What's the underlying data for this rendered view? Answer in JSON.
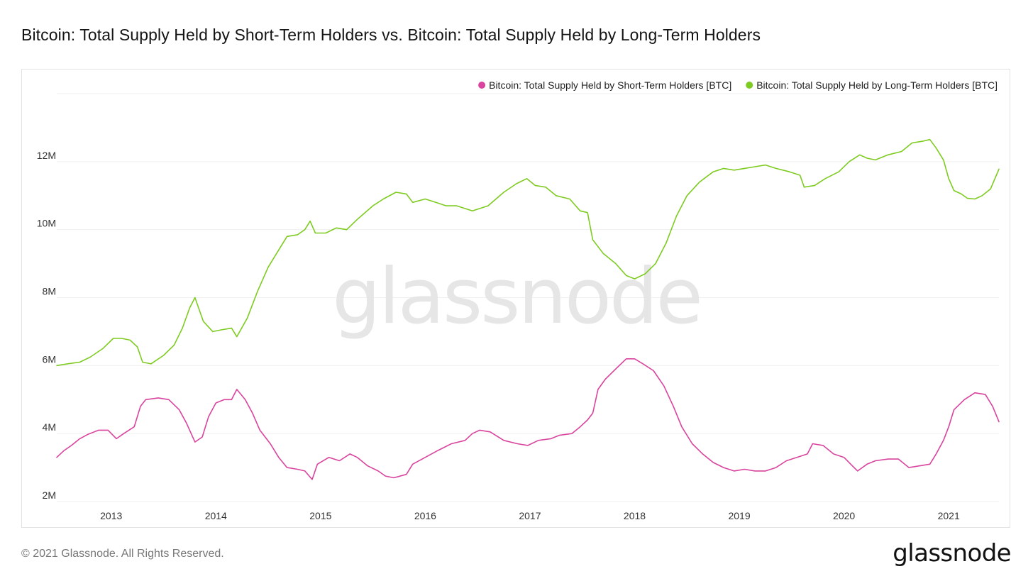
{
  "header": {
    "title": "Bitcoin: Total Supply Held by Short-Term Holders vs. Bitcoin: Total Supply Held by Long-Term Holders"
  },
  "footer": {
    "copyright": "© 2021 Glassnode. All Rights Reserved.",
    "brand": "glassnode"
  },
  "watermark": "glassnode",
  "colors": {
    "sth": "#d9449e",
    "lth": "#7ecb20",
    "grid": "#efefef",
    "watermark": "#e6e6e6"
  },
  "chart_data": {
    "type": "line",
    "title": "Bitcoin: Total Supply Held by Short-Term Holders vs. Bitcoin: Total Supply Held by Long-Term Holders",
    "xlabel": "",
    "ylabel": "",
    "x_range": [
      2012.48,
      2021.48
    ],
    "ylim": [
      2000000,
      14000000
    ],
    "y_ticks": [
      {
        "value": 2000000,
        "label": "2M"
      },
      {
        "value": 4000000,
        "label": "4M"
      },
      {
        "value": 6000000,
        "label": "6M"
      },
      {
        "value": 8000000,
        "label": "8M"
      },
      {
        "value": 10000000,
        "label": "10M"
      },
      {
        "value": 12000000,
        "label": "12M"
      },
      {
        "value": 14000000,
        "label": ""
      }
    ],
    "x_ticks": [
      {
        "value": 2013,
        "label": "2013"
      },
      {
        "value": 2014,
        "label": "2014"
      },
      {
        "value": 2015,
        "label": "2015"
      },
      {
        "value": 2016,
        "label": "2016"
      },
      {
        "value": 2017,
        "label": "2017"
      },
      {
        "value": 2018,
        "label": "2018"
      },
      {
        "value": 2019,
        "label": "2019"
      },
      {
        "value": 2020,
        "label": "2020"
      },
      {
        "value": 2021,
        "label": "2021"
      }
    ],
    "grid": true,
    "legend_position": "top-right",
    "series": [
      {
        "name": "Bitcoin: Total Supply Held by Short-Term Holders [BTC]",
        "color": "#d9449e",
        "points": [
          [
            2012.48,
            3300000
          ],
          [
            2012.55,
            3500000
          ],
          [
            2012.62,
            3650000
          ],
          [
            2012.7,
            3850000
          ],
          [
            2012.78,
            3980000
          ],
          [
            2012.88,
            4100000
          ],
          [
            2012.97,
            4100000
          ],
          [
            2013.05,
            3850000
          ],
          [
            2013.12,
            4000000
          ],
          [
            2013.22,
            4200000
          ],
          [
            2013.28,
            4800000
          ],
          [
            2013.33,
            5000000
          ],
          [
            2013.45,
            5050000
          ],
          [
            2013.55,
            5000000
          ],
          [
            2013.65,
            4700000
          ],
          [
            2013.72,
            4300000
          ],
          [
            2013.8,
            3750000
          ],
          [
            2013.87,
            3900000
          ],
          [
            2013.93,
            4500000
          ],
          [
            2014.0,
            4900000
          ],
          [
            2014.08,
            5000000
          ],
          [
            2014.15,
            5000000
          ],
          [
            2014.2,
            5300000
          ],
          [
            2014.28,
            5000000
          ],
          [
            2014.35,
            4600000
          ],
          [
            2014.42,
            4100000
          ],
          [
            2014.52,
            3700000
          ],
          [
            2014.6,
            3300000
          ],
          [
            2014.68,
            3000000
          ],
          [
            2014.78,
            2950000
          ],
          [
            2014.85,
            2900000
          ],
          [
            2014.92,
            2650000
          ],
          [
            2014.97,
            3100000
          ],
          [
            2015.08,
            3300000
          ],
          [
            2015.18,
            3200000
          ],
          [
            2015.28,
            3400000
          ],
          [
            2015.35,
            3300000
          ],
          [
            2015.45,
            3050000
          ],
          [
            2015.55,
            2900000
          ],
          [
            2015.62,
            2750000
          ],
          [
            2015.7,
            2700000
          ],
          [
            2015.82,
            2800000
          ],
          [
            2015.88,
            3100000
          ],
          [
            2016.0,
            3300000
          ],
          [
            2016.12,
            3500000
          ],
          [
            2016.25,
            3700000
          ],
          [
            2016.38,
            3800000
          ],
          [
            2016.45,
            4000000
          ],
          [
            2016.52,
            4100000
          ],
          [
            2016.62,
            4050000
          ],
          [
            2016.75,
            3800000
          ],
          [
            2016.88,
            3700000
          ],
          [
            2016.98,
            3650000
          ],
          [
            2017.08,
            3800000
          ],
          [
            2017.2,
            3850000
          ],
          [
            2017.28,
            3950000
          ],
          [
            2017.4,
            4000000
          ],
          [
            2017.48,
            4200000
          ],
          [
            2017.55,
            4400000
          ],
          [
            2017.6,
            4600000
          ],
          [
            2017.65,
            5300000
          ],
          [
            2017.72,
            5600000
          ],
          [
            2017.82,
            5900000
          ],
          [
            2017.92,
            6200000
          ],
          [
            2018.0,
            6200000
          ],
          [
            2018.08,
            6050000
          ],
          [
            2018.18,
            5850000
          ],
          [
            2018.28,
            5400000
          ],
          [
            2018.37,
            4800000
          ],
          [
            2018.45,
            4200000
          ],
          [
            2018.55,
            3700000
          ],
          [
            2018.65,
            3400000
          ],
          [
            2018.75,
            3150000
          ],
          [
            2018.85,
            3000000
          ],
          [
            2018.95,
            2900000
          ],
          [
            2019.05,
            2950000
          ],
          [
            2019.15,
            2900000
          ],
          [
            2019.25,
            2900000
          ],
          [
            2019.35,
            3000000
          ],
          [
            2019.45,
            3200000
          ],
          [
            2019.55,
            3300000
          ],
          [
            2019.65,
            3400000
          ],
          [
            2019.7,
            3700000
          ],
          [
            2019.8,
            3650000
          ],
          [
            2019.9,
            3400000
          ],
          [
            2020.0,
            3300000
          ],
          [
            2020.08,
            3050000
          ],
          [
            2020.13,
            2900000
          ],
          [
            2020.22,
            3100000
          ],
          [
            2020.3,
            3200000
          ],
          [
            2020.42,
            3250000
          ],
          [
            2020.52,
            3250000
          ],
          [
            2020.62,
            3000000
          ],
          [
            2020.72,
            3050000
          ],
          [
            2020.82,
            3100000
          ],
          [
            2020.88,
            3400000
          ],
          [
            2020.95,
            3800000
          ],
          [
            2021.0,
            4200000
          ],
          [
            2021.05,
            4700000
          ],
          [
            2021.15,
            5000000
          ],
          [
            2021.25,
            5200000
          ],
          [
            2021.35,
            5150000
          ],
          [
            2021.42,
            4800000
          ],
          [
            2021.48,
            4350000
          ]
        ]
      },
      {
        "name": "Bitcoin: Total Supply Held by Long-Term Holders [BTC]",
        "color": "#7ecb20",
        "points": [
          [
            2012.48,
            6000000
          ],
          [
            2012.58,
            6050000
          ],
          [
            2012.7,
            6100000
          ],
          [
            2012.8,
            6250000
          ],
          [
            2012.92,
            6500000
          ],
          [
            2013.02,
            6800000
          ],
          [
            2013.1,
            6800000
          ],
          [
            2013.18,
            6750000
          ],
          [
            2013.25,
            6550000
          ],
          [
            2013.3,
            6100000
          ],
          [
            2013.38,
            6050000
          ],
          [
            2013.5,
            6300000
          ],
          [
            2013.6,
            6600000
          ],
          [
            2013.68,
            7100000
          ],
          [
            2013.75,
            7700000
          ],
          [
            2013.8,
            8000000
          ],
          [
            2013.88,
            7300000
          ],
          [
            2013.97,
            7000000
          ],
          [
            2014.05,
            7050000
          ],
          [
            2014.15,
            7100000
          ],
          [
            2014.2,
            6850000
          ],
          [
            2014.3,
            7400000
          ],
          [
            2014.4,
            8200000
          ],
          [
            2014.5,
            8900000
          ],
          [
            2014.6,
            9400000
          ],
          [
            2014.68,
            9800000
          ],
          [
            2014.78,
            9850000
          ],
          [
            2014.85,
            10000000
          ],
          [
            2014.9,
            10250000
          ],
          [
            2014.95,
            9900000
          ],
          [
            2015.05,
            9900000
          ],
          [
            2015.15,
            10050000
          ],
          [
            2015.25,
            10000000
          ],
          [
            2015.35,
            10300000
          ],
          [
            2015.5,
            10700000
          ],
          [
            2015.6,
            10900000
          ],
          [
            2015.72,
            11100000
          ],
          [
            2015.82,
            11050000
          ],
          [
            2015.88,
            10800000
          ],
          [
            2016.0,
            10900000
          ],
          [
            2016.1,
            10800000
          ],
          [
            2016.2,
            10700000
          ],
          [
            2016.3,
            10700000
          ],
          [
            2016.45,
            10550000
          ],
          [
            2016.6,
            10700000
          ],
          [
            2016.75,
            11100000
          ],
          [
            2016.87,
            11350000
          ],
          [
            2016.97,
            11500000
          ],
          [
            2017.05,
            11300000
          ],
          [
            2017.15,
            11250000
          ],
          [
            2017.25,
            11000000
          ],
          [
            2017.38,
            10900000
          ],
          [
            2017.48,
            10550000
          ],
          [
            2017.55,
            10500000
          ],
          [
            2017.6,
            9700000
          ],
          [
            2017.7,
            9300000
          ],
          [
            2017.82,
            9000000
          ],
          [
            2017.92,
            8650000
          ],
          [
            2018.0,
            8550000
          ],
          [
            2018.1,
            8700000
          ],
          [
            2018.2,
            9000000
          ],
          [
            2018.3,
            9600000
          ],
          [
            2018.4,
            10400000
          ],
          [
            2018.5,
            11000000
          ],
          [
            2018.62,
            11400000
          ],
          [
            2018.75,
            11700000
          ],
          [
            2018.85,
            11800000
          ],
          [
            2018.95,
            11750000
          ],
          [
            2019.05,
            11800000
          ],
          [
            2019.15,
            11850000
          ],
          [
            2019.25,
            11900000
          ],
          [
            2019.35,
            11800000
          ],
          [
            2019.48,
            11700000
          ],
          [
            2019.58,
            11600000
          ],
          [
            2019.62,
            11250000
          ],
          [
            2019.72,
            11300000
          ],
          [
            2019.82,
            11500000
          ],
          [
            2019.95,
            11700000
          ],
          [
            2020.05,
            12000000
          ],
          [
            2020.15,
            12200000
          ],
          [
            2020.22,
            12100000
          ],
          [
            2020.3,
            12050000
          ],
          [
            2020.42,
            12200000
          ],
          [
            2020.55,
            12300000
          ],
          [
            2020.65,
            12550000
          ],
          [
            2020.75,
            12600000
          ],
          [
            2020.82,
            12650000
          ],
          [
            2020.88,
            12400000
          ],
          [
            2020.95,
            12050000
          ],
          [
            2021.0,
            11500000
          ],
          [
            2021.05,
            11150000
          ],
          [
            2021.12,
            11050000
          ],
          [
            2021.18,
            10920000
          ],
          [
            2021.25,
            10900000
          ],
          [
            2021.32,
            11000000
          ],
          [
            2021.4,
            11200000
          ],
          [
            2021.48,
            11780000
          ]
        ]
      }
    ]
  }
}
